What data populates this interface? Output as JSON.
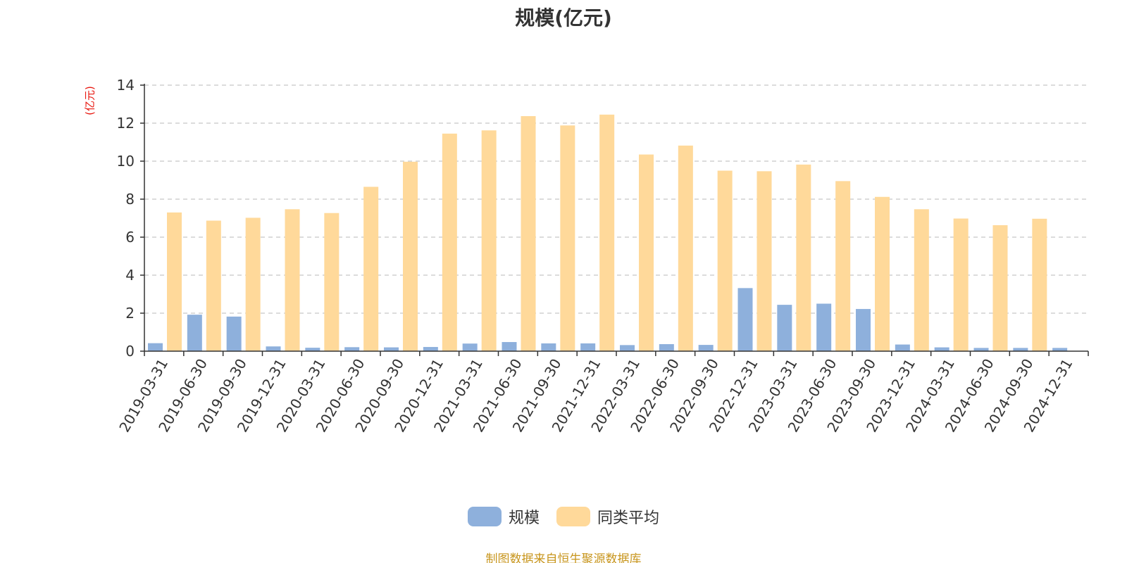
{
  "title": "规模(亿元)",
  "y_unit": "(亿元)",
  "source_note": "制图数据来自恒生聚源数据库",
  "colors": {
    "series_0": "#8eb0dc",
    "series_1": "#ffd99a",
    "grid": "#c8c8c8",
    "axis": "#333333",
    "unit": "#e8140c",
    "source": "#c8961e"
  },
  "legend": [
    {
      "name": "规模",
      "color": "#8eb0dc"
    },
    {
      "name": "同类平均",
      "color": "#ffd99a"
    }
  ],
  "chart_data": {
    "type": "bar",
    "title": "规模(亿元)",
    "xlabel": "",
    "ylabel": "(亿元)",
    "ylim": [
      0,
      14
    ],
    "yticks": [
      0,
      2,
      4,
      6,
      8,
      10,
      12,
      14
    ],
    "grid": true,
    "legend_position": "bottom",
    "categories": [
      "2019-03-31",
      "2019-06-30",
      "2019-09-30",
      "2019-12-31",
      "2020-03-31",
      "2020-06-30",
      "2020-09-30",
      "2020-12-31",
      "2021-03-31",
      "2021-06-30",
      "2021-09-30",
      "2021-12-31",
      "2022-03-31",
      "2022-06-30",
      "2022-09-30",
      "2022-12-31",
      "2023-03-31",
      "2023-06-30",
      "2023-09-30",
      "2023-12-31",
      "2024-03-31",
      "2024-06-30",
      "2024-09-30",
      "2024-12-31"
    ],
    "series": [
      {
        "name": "规模",
        "values": [
          0.42,
          1.92,
          1.82,
          0.25,
          0.18,
          0.21,
          0.2,
          0.22,
          0.4,
          0.48,
          0.41,
          0.41,
          0.32,
          0.37,
          0.33,
          3.32,
          2.44,
          2.5,
          2.22,
          0.35,
          0.2,
          0.17,
          0.17,
          0.17
        ]
      },
      {
        "name": "同类平均",
        "values": [
          7.3,
          6.87,
          7.02,
          7.47,
          7.27,
          8.65,
          9.97,
          11.45,
          11.62,
          12.37,
          11.88,
          12.45,
          10.35,
          10.82,
          9.5,
          9.47,
          9.82,
          8.95,
          8.12,
          7.47,
          6.98,
          6.63,
          6.97,
          null
        ]
      }
    ]
  }
}
